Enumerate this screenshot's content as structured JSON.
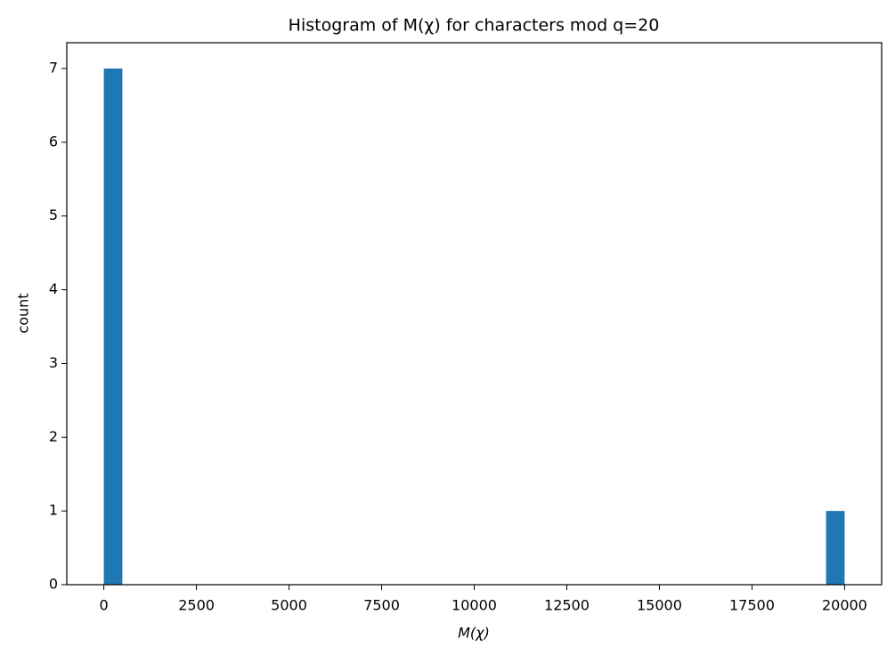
{
  "chart_data": {
    "type": "histogram",
    "title": "Histogram of M(χ) for characters mod q=20",
    "xlabel": "M(χ)",
    "ylabel": "count",
    "bins": [
      0,
      500,
      1000,
      1500,
      2000,
      2500,
      3000,
      3500,
      4000,
      4500,
      5000,
      5500,
      6000,
      6500,
      7000,
      7500,
      8000,
      8500,
      9000,
      9500,
      10000,
      10500,
      11000,
      11500,
      12000,
      12500,
      13000,
      13500,
      14000,
      14500,
      15000,
      15500,
      16000,
      16500,
      17000,
      17500,
      18000,
      18500,
      19000,
      19500,
      20000
    ],
    "values": [
      7,
      0,
      0,
      0,
      0,
      0,
      0,
      0,
      0,
      0,
      0,
      0,
      0,
      0,
      0,
      0,
      0,
      0,
      0,
      0,
      0,
      0,
      0,
      0,
      0,
      0,
      0,
      0,
      0,
      0,
      0,
      0,
      0,
      0,
      0,
      0,
      0,
      0,
      0,
      1
    ],
    "color": "#1f77b4",
    "xlim": [
      -1000,
      21000
    ],
    "xticks": [
      0,
      2500,
      5000,
      7500,
      10000,
      12500,
      15000,
      17500,
      20000
    ],
    "ylim": [
      0,
      7.35
    ],
    "yticks": [
      0,
      1,
      2,
      3,
      4,
      5,
      6,
      7
    ]
  }
}
